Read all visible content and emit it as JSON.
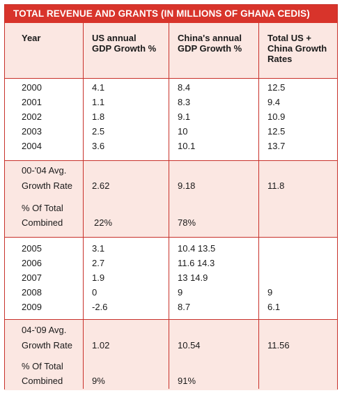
{
  "title": "TOTAL REVENUE AND GRANTS (IN MILLIONS OF GHANA CEDIS)",
  "headers": {
    "year": "Year",
    "us_line1": "US annual",
    "us_line2": "GDP Growth %",
    "china_line1": "China's annual",
    "china_line2": "GDP Growth %",
    "total_line1": "Total US +",
    "total_line2": "China Growth",
    "total_line3": "Rates"
  },
  "rows_a": [
    {
      "year": "2000",
      "us": "4.1",
      "china": "8.4",
      "total": "12.5"
    },
    {
      "year": "2001",
      "us": "1.1",
      "china": "8.3",
      "total": "9.4"
    },
    {
      "year": "2002",
      "us": "1.8",
      "china": "9.1",
      "total": "10.9"
    },
    {
      "year": "2003",
      "us": "2.5",
      "china": "10",
      "total": "12.5"
    },
    {
      "year": "2004",
      "us": "3.6",
      "china": "10.1",
      "total": "13.7"
    }
  ],
  "summary_a": {
    "avg_label_1": "00-'04 Avg.",
    "avg_label_2": "Growth Rate",
    "avg_us": "2.62",
    "avg_china": "9.18",
    "avg_total": "11.8",
    "pct_label_1": "% Of Total",
    "pct_label_2": "Combined",
    "pct_us": "22%",
    "pct_china": "78%"
  },
  "rows_b": [
    {
      "year": "2005",
      "us": "3.1",
      "china": "10.4 13.5",
      "total": ""
    },
    {
      "year": "2006",
      "us": "2.7",
      "china": "11.6 14.3",
      "total": ""
    },
    {
      "year": "2007",
      "us": "1.9",
      "china": "13 14.9",
      "total": ""
    },
    {
      "year": "2008",
      "us": "0",
      "china": "9",
      "total": "9"
    },
    {
      "year": "2009",
      "us": "-2.6",
      "china": "8.7",
      "total": "6.1"
    }
  ],
  "summary_b": {
    "avg_label_1": "04-'09 Avg.",
    "avg_label_2": "Growth Rate",
    "avg_us": "1.02",
    "avg_china": "10.54",
    "avg_total": "11.56",
    "pct_label_1": "% Of Total",
    "pct_label_2": "Combined",
    "pct_us": "9%",
    "pct_china": "91%"
  },
  "colors": {
    "accent": "#d8342b",
    "band": "#fbe7e2",
    "rule": "#c8312a"
  }
}
